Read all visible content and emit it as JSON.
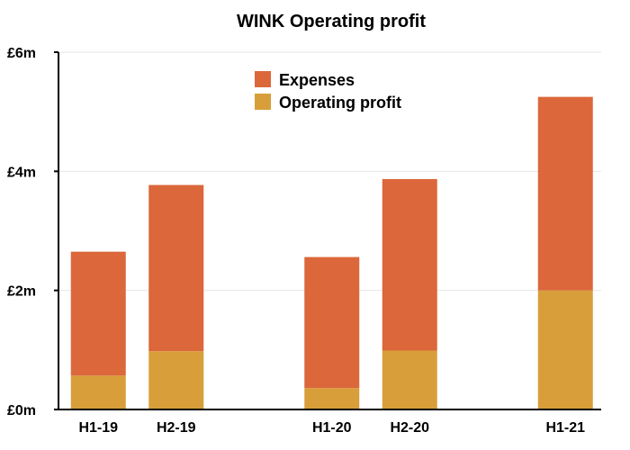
{
  "chart_data": {
    "type": "bar",
    "stacked": true,
    "title": "WINK Operating profit",
    "xlabel": "",
    "ylabel": "",
    "categories": [
      "H1-19",
      "H2-19",
      "",
      "H1-20",
      "H2-20",
      "",
      "H1-21"
    ],
    "series": [
      {
        "name": "Operating profit",
        "color": "#D89E3A",
        "values": [
          0.57,
          0.98,
          null,
          0.36,
          0.99,
          null,
          2.0
        ]
      },
      {
        "name": "Expenses",
        "color": "#DB673B",
        "values": [
          2.08,
          2.79,
          null,
          2.2,
          2.88,
          null,
          3.25
        ]
      }
    ],
    "ylim": [
      0,
      6
    ],
    "yticks": [
      0,
      2,
      4,
      6
    ],
    "ytick_labels": [
      "£0m",
      "£2m",
      "£4m",
      "£6m"
    ],
    "legend": {
      "position": "top-center",
      "order": [
        "Expenses",
        "Operating profit"
      ]
    },
    "grid": true,
    "grid_color": "#e6e6e6",
    "axis_color": "#000000"
  }
}
